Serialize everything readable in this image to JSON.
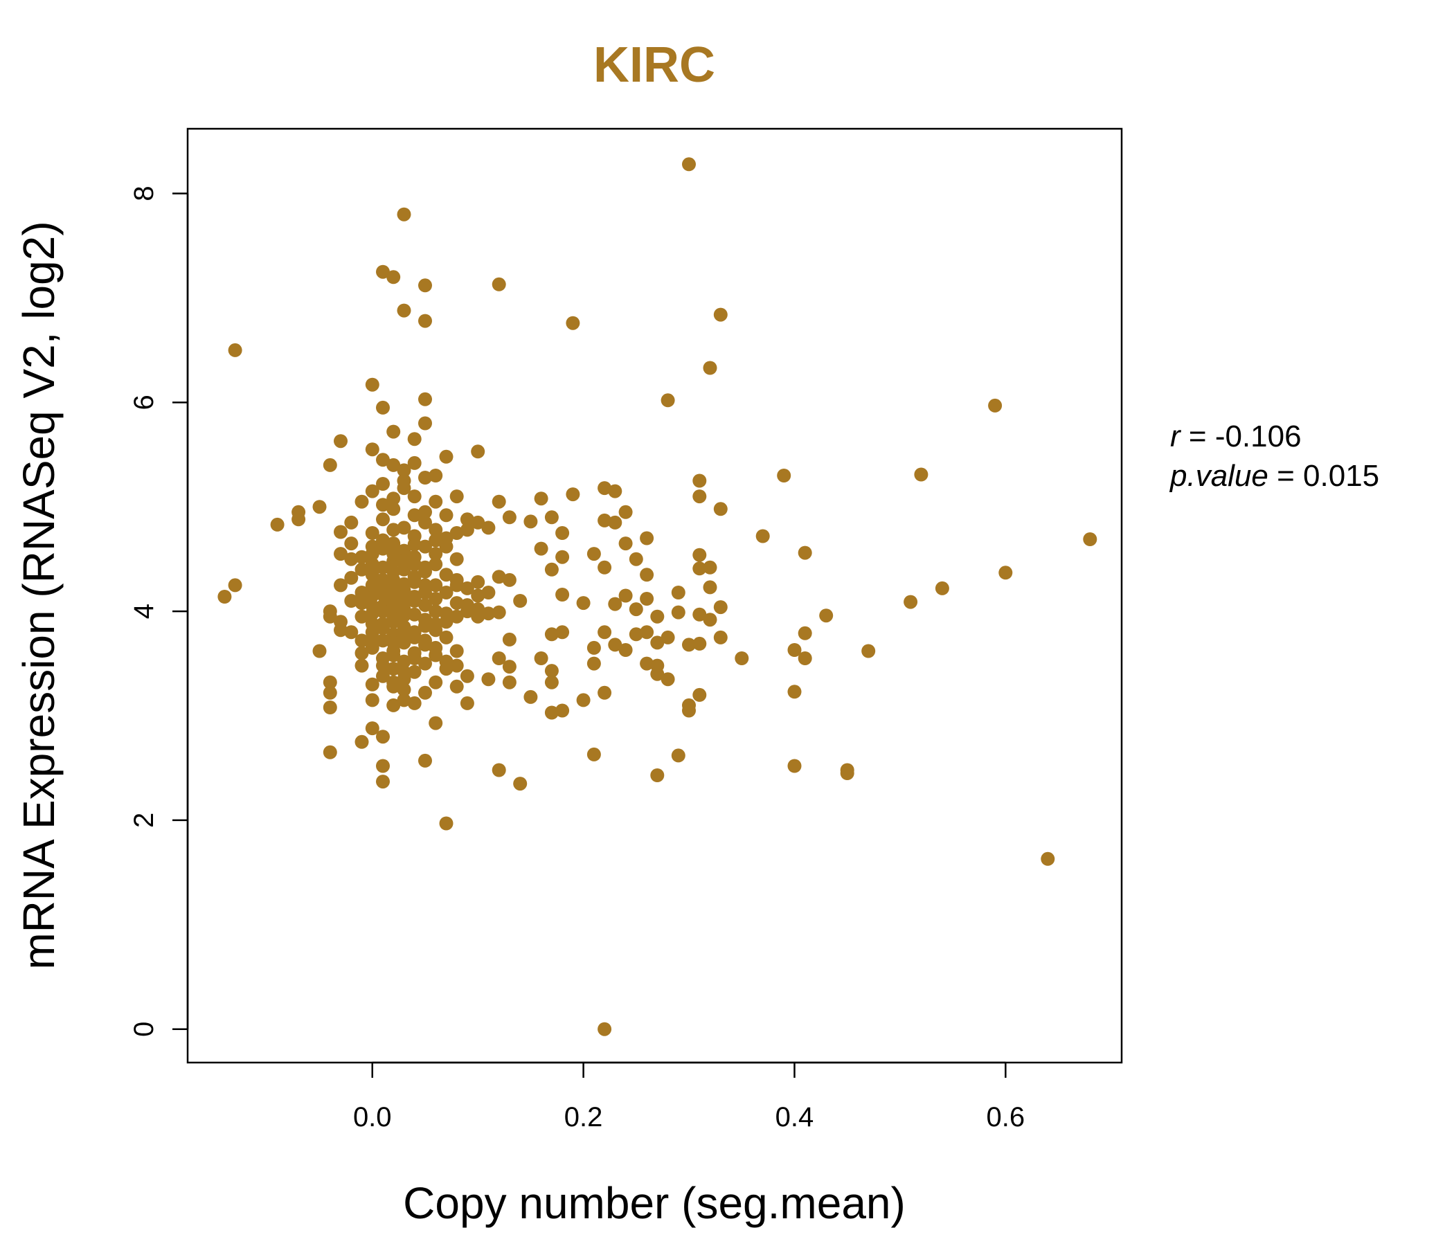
{
  "chart_data": {
    "type": "scatter",
    "title": "KIRC",
    "xlabel": "Copy number (seg.mean)",
    "ylabel": "mRNA Expression (RNASeq V2, log2)",
    "xlim": [
      -0.175,
      0.71
    ],
    "ylim": [
      -0.32,
      8.62
    ],
    "x_ticks": [
      0.0,
      0.2,
      0.4,
      0.6
    ],
    "x_tick_labels": [
      "0.0",
      "0.2",
      "0.4",
      "0.6"
    ],
    "y_ticks": [
      0,
      2,
      4,
      6,
      8
    ],
    "y_tick_labels": [
      "0",
      "2",
      "4",
      "6",
      "8"
    ],
    "grid": false,
    "colors": {
      "points": "#A87822",
      "title": "#A87822",
      "axis": "#000000"
    },
    "stats": {
      "r_symbol": "r",
      "r_value": "-0.106",
      "p_symbol": "p.value",
      "p_value": "0.015"
    },
    "points": [
      [
        0.3,
        8.28
      ],
      [
        0.03,
        7.8
      ],
      [
        0.01,
        7.25
      ],
      [
        0.02,
        7.2
      ],
      [
        0.05,
        7.12
      ],
      [
        0.12,
        7.13
      ],
      [
        0.03,
        6.88
      ],
      [
        0.05,
        6.78
      ],
      [
        0.19,
        6.76
      ],
      [
        0.33,
        6.84
      ],
      [
        -0.13,
        6.5
      ],
      [
        0.32,
        6.33
      ],
      [
        0.0,
        6.17
      ],
      [
        0.05,
        6.03
      ],
      [
        0.28,
        6.02
      ],
      [
        0.59,
        5.97
      ],
      [
        0.01,
        5.95
      ],
      [
        0.05,
        5.8
      ],
      [
        0.04,
        5.65
      ],
      [
        -0.03,
        5.63
      ],
      [
        0.02,
        5.72
      ],
      [
        0.07,
        5.48
      ],
      [
        0.1,
        5.53
      ],
      [
        -0.04,
        5.4
      ],
      [
        0.52,
        5.31
      ],
      [
        0.39,
        5.3
      ],
      [
        0.31,
        5.25
      ],
      [
        0.22,
        5.18
      ],
      [
        0.23,
        5.15
      ],
      [
        0.19,
        5.12
      ],
      [
        0.31,
        5.1
      ],
      [
        0.16,
        5.08
      ],
      [
        0.12,
        5.05
      ],
      [
        -0.05,
        5.0
      ],
      [
        0.33,
        4.98
      ],
      [
        0.24,
        4.95
      ],
      [
        -0.07,
        4.95
      ],
      [
        -0.07,
        4.88
      ],
      [
        0.17,
        4.9
      ],
      [
        0.13,
        4.9
      ],
      [
        0.22,
        4.87
      ],
      [
        0.23,
        4.85
      ],
      [
        0.15,
        4.86
      ],
      [
        -0.09,
        4.83
      ],
      [
        0.18,
        4.75
      ],
      [
        0.37,
        4.72
      ],
      [
        0.26,
        4.7
      ],
      [
        0.68,
        4.69
      ],
      [
        0.24,
        4.65
      ],
      [
        0.16,
        4.6
      ],
      [
        0.41,
        4.56
      ],
      [
        0.21,
        4.55
      ],
      [
        0.31,
        4.54
      ],
      [
        0.18,
        4.52
      ],
      [
        0.25,
        4.5
      ],
      [
        0.32,
        4.42
      ],
      [
        0.31,
        4.41
      ],
      [
        0.22,
        4.42
      ],
      [
        0.17,
        4.4
      ],
      [
        0.6,
        4.37
      ],
      [
        0.26,
        4.35
      ],
      [
        0.12,
        4.33
      ],
      [
        0.13,
        4.3
      ],
      [
        0.1,
        4.28
      ],
      [
        0.08,
        4.25
      ],
      [
        -0.13,
        4.25
      ],
      [
        0.32,
        4.23
      ],
      [
        0.54,
        4.22
      ],
      [
        0.29,
        4.18
      ],
      [
        0.18,
        4.16
      ],
      [
        -0.14,
        4.14
      ],
      [
        0.24,
        4.15
      ],
      [
        0.26,
        4.12
      ],
      [
        0.14,
        4.1
      ],
      [
        0.2,
        4.08
      ],
      [
        0.51,
        4.09
      ],
      [
        0.23,
        4.07
      ],
      [
        0.33,
        4.04
      ],
      [
        0.25,
        4.02
      ],
      [
        0.29,
        3.99
      ],
      [
        0.31,
        3.97
      ],
      [
        0.43,
        3.96
      ],
      [
        0.27,
        3.95
      ],
      [
        0.12,
        3.99
      ],
      [
        0.11,
        3.98
      ],
      [
        0.1,
        3.95
      ],
      [
        0.32,
        3.92
      ],
      [
        0.18,
        3.8
      ],
      [
        0.22,
        3.8
      ],
      [
        0.41,
        3.79
      ],
      [
        0.25,
        3.78
      ],
      [
        0.17,
        3.78
      ],
      [
        0.26,
        3.8
      ],
      [
        0.28,
        3.75
      ],
      [
        0.33,
        3.75
      ],
      [
        0.13,
        3.73
      ],
      [
        0.27,
        3.7
      ],
      [
        0.23,
        3.68
      ],
      [
        0.3,
        3.68
      ],
      [
        0.31,
        3.69
      ],
      [
        0.47,
        3.62
      ],
      [
        0.4,
        3.63
      ],
      [
        0.21,
        3.65
      ],
      [
        0.24,
        3.63
      ],
      [
        0.35,
        3.55
      ],
      [
        0.16,
        3.55
      ],
      [
        0.41,
        3.55
      ],
      [
        0.12,
        3.55
      ],
      [
        0.26,
        3.5
      ],
      [
        0.21,
        3.5
      ],
      [
        0.13,
        3.47
      ],
      [
        0.27,
        3.48
      ],
      [
        0.17,
        3.43
      ],
      [
        0.27,
        3.4
      ],
      [
        0.28,
        3.35
      ],
      [
        0.17,
        3.32
      ],
      [
        0.13,
        3.32
      ],
      [
        0.11,
        3.35
      ],
      [
        0.22,
        3.22
      ],
      [
        0.4,
        3.23
      ],
      [
        0.31,
        3.2
      ],
      [
        0.15,
        3.18
      ],
      [
        0.2,
        3.15
      ],
      [
        0.3,
        3.1
      ],
      [
        0.3,
        3.05
      ],
      [
        0.18,
        3.05
      ],
      [
        0.17,
        3.03
      ],
      [
        0.09,
        3.12
      ],
      [
        0.06,
        2.93
      ],
      [
        0.0,
        2.88
      ],
      [
        -0.01,
        2.75
      ],
      [
        0.01,
        2.8
      ],
      [
        -0.04,
        2.65
      ],
      [
        0.21,
        2.63
      ],
      [
        0.29,
        2.62
      ],
      [
        0.05,
        2.57
      ],
      [
        0.4,
        2.52
      ],
      [
        0.45,
        2.48
      ],
      [
        0.45,
        2.45
      ],
      [
        0.12,
        2.48
      ],
      [
        0.01,
        2.52
      ],
      [
        0.27,
        2.43
      ],
      [
        0.01,
        2.37
      ],
      [
        0.14,
        2.35
      ],
      [
        0.07,
        1.97
      ],
      [
        0.64,
        1.63
      ],
      [
        0.22,
        0.0
      ],
      [
        0.0,
        5.55
      ],
      [
        0.01,
        5.45
      ],
      [
        0.02,
        5.4
      ],
      [
        0.03,
        5.35
      ],
      [
        0.04,
        5.42
      ],
      [
        0.05,
        5.28
      ],
      [
        0.06,
        5.3
      ],
      [
        0.01,
        5.22
      ],
      [
        0.03,
        5.18
      ],
      [
        0.0,
        5.15
      ],
      [
        0.02,
        5.08
      ],
      [
        0.04,
        5.1
      ],
      [
        0.06,
        5.05
      ],
      [
        0.08,
        5.1
      ],
      [
        -0.01,
        5.05
      ],
      [
        0.02,
        4.98
      ],
      [
        0.05,
        4.95
      ],
      [
        0.07,
        4.92
      ],
      [
        0.09,
        4.88
      ],
      [
        0.1,
        4.85
      ],
      [
        -0.02,
        4.85
      ],
      [
        0.01,
        4.88
      ],
      [
        0.03,
        4.8
      ],
      [
        0.06,
        4.78
      ],
      [
        0.08,
        4.75
      ],
      [
        0.0,
        4.75
      ],
      [
        -0.03,
        4.76
      ],
      [
        0.04,
        4.72
      ],
      [
        0.07,
        4.7
      ],
      [
        0.02,
        4.65
      ],
      [
        -0.02,
        4.65
      ],
      [
        0.05,
        4.62
      ],
      [
        0.01,
        4.6
      ],
      [
        0.03,
        4.58
      ],
      [
        0.0,
        4.55
      ],
      [
        0.06,
        4.55
      ],
      [
        0.08,
        4.5
      ],
      [
        -0.01,
        4.52
      ],
      [
        0.02,
        4.48
      ],
      [
        0.04,
        4.45
      ],
      [
        0.01,
        4.42
      ],
      [
        0.03,
        4.4
      ],
      [
        0.05,
        4.38
      ],
      [
        0.07,
        4.35
      ],
      [
        0.0,
        4.35
      ],
      [
        -0.02,
        4.32
      ],
      [
        0.02,
        4.3
      ],
      [
        0.04,
        4.28
      ],
      [
        0.06,
        4.25
      ],
      [
        0.09,
        4.22
      ],
      [
        -0.03,
        4.25
      ],
      [
        0.01,
        4.22
      ],
      [
        0.03,
        4.2
      ],
      [
        0.05,
        4.18
      ],
      [
        0.0,
        4.15
      ],
      [
        0.02,
        4.12
      ],
      [
        0.04,
        4.1
      ],
      [
        0.08,
        4.08
      ],
      [
        -0.01,
        4.08
      ],
      [
        0.01,
        4.05
      ],
      [
        0.03,
        4.02
      ],
      [
        0.06,
        4.0
      ],
      [
        0.09,
        4.0
      ],
      [
        -0.04,
        4.0
      ],
      [
        0.0,
        3.98
      ],
      [
        0.02,
        3.95
      ],
      [
        0.05,
        3.92
      ],
      [
        0.07,
        3.9
      ],
      [
        -0.03,
        3.9
      ],
      [
        0.01,
        3.88
      ],
      [
        0.03,
        3.85
      ],
      [
        0.06,
        3.82
      ],
      [
        0.0,
        3.8
      ],
      [
        -0.02,
        3.8
      ],
      [
        0.02,
        3.78
      ],
      [
        0.04,
        3.75
      ],
      [
        0.07,
        3.75
      ],
      [
        0.01,
        3.72
      ],
      [
        0.03,
        3.7
      ],
      [
        0.05,
        3.68
      ],
      [
        0.0,
        3.65
      ],
      [
        0.02,
        3.62
      ],
      [
        0.04,
        3.6
      ],
      [
        0.06,
        3.58
      ],
      [
        -0.05,
        3.62
      ],
      [
        0.01,
        3.55
      ],
      [
        0.03,
        3.52
      ],
      [
        0.05,
        3.5
      ],
      [
        0.08,
        3.48
      ],
      [
        -0.01,
        3.48
      ],
      [
        0.02,
        3.45
      ],
      [
        0.04,
        3.42
      ],
      [
        0.07,
        3.45
      ],
      [
        0.01,
        3.38
      ],
      [
        0.03,
        3.35
      ],
      [
        0.06,
        3.32
      ],
      [
        -0.04,
        3.32
      ],
      [
        0.0,
        3.3
      ],
      [
        0.02,
        3.28
      ],
      [
        0.05,
        3.22
      ],
      [
        -0.04,
        3.22
      ],
      [
        0.03,
        3.15
      ],
      [
        0.0,
        3.15
      ],
      [
        0.04,
        3.12
      ],
      [
        0.02,
        3.1
      ],
      [
        -0.04,
        3.08
      ],
      [
        0.08,
        3.28
      ],
      [
        0.09,
        3.38
      ],
      [
        0.01,
        4.68
      ],
      [
        0.02,
        4.55
      ],
      [
        0.03,
        4.48
      ],
      [
        0.02,
        4.38
      ],
      [
        0.01,
        4.3
      ],
      [
        0.03,
        4.26
      ],
      [
        0.02,
        4.2
      ],
      [
        0.01,
        4.16
      ],
      [
        0.03,
        4.12
      ],
      [
        0.02,
        4.05
      ],
      [
        0.01,
        4.0
      ],
      [
        0.03,
        3.96
      ],
      [
        0.02,
        3.9
      ],
      [
        0.01,
        3.84
      ],
      [
        0.03,
        3.78
      ],
      [
        0.02,
        3.7
      ],
      [
        0.04,
        4.52
      ],
      [
        0.05,
        4.42
      ],
      [
        0.04,
        4.33
      ],
      [
        0.05,
        4.25
      ],
      [
        0.04,
        4.14
      ],
      [
        0.05,
        4.06
      ],
      [
        0.04,
        3.97
      ],
      [
        0.05,
        3.86
      ],
      [
        0.04,
        3.8
      ],
      [
        0.0,
        4.62
      ],
      [
        0.0,
        4.45
      ],
      [
        0.0,
        4.25
      ],
      [
        0.0,
        4.05
      ],
      [
        0.0,
        3.88
      ],
      [
        -0.01,
        4.4
      ],
      [
        -0.01,
        4.18
      ],
      [
        -0.01,
        3.95
      ],
      [
        -0.01,
        3.72
      ],
      [
        0.06,
        4.45
      ],
      [
        0.06,
        4.12
      ],
      [
        0.06,
        3.88
      ],
      [
        0.07,
        4.18
      ],
      [
        0.07,
        3.98
      ],
      [
        0.08,
        4.3
      ],
      [
        0.08,
        3.95
      ],
      [
        0.1,
        4.15
      ],
      [
        0.1,
        4.02
      ],
      [
        0.11,
        4.18
      ],
      [
        0.09,
        4.06
      ],
      [
        -0.02,
        4.1
      ],
      [
        -0.03,
        3.82
      ],
      [
        -0.04,
        3.95
      ],
      [
        -0.03,
        4.55
      ],
      [
        -0.02,
        4.5
      ],
      [
        0.04,
        4.92
      ],
      [
        0.01,
        5.02
      ],
      [
        0.03,
        5.25
      ],
      [
        0.05,
        4.85
      ],
      [
        0.02,
        4.78
      ],
      [
        0.07,
        4.62
      ],
      [
        0.06,
        4.68
      ],
      [
        0.09,
        4.78
      ],
      [
        0.11,
        4.8
      ],
      [
        0.04,
        4.64
      ],
      [
        0.02,
        3.58
      ],
      [
        0.01,
        3.48
      ],
      [
        0.03,
        3.42
      ],
      [
        0.04,
        3.55
      ],
      [
        0.06,
        3.65
      ],
      [
        0.05,
        3.72
      ],
      [
        0.0,
        3.72
      ],
      [
        -0.01,
        3.6
      ],
      [
        0.07,
        3.52
      ],
      [
        0.08,
        3.62
      ],
      [
        0.02,
        3.32
      ],
      [
        0.03,
        3.25
      ]
    ]
  }
}
